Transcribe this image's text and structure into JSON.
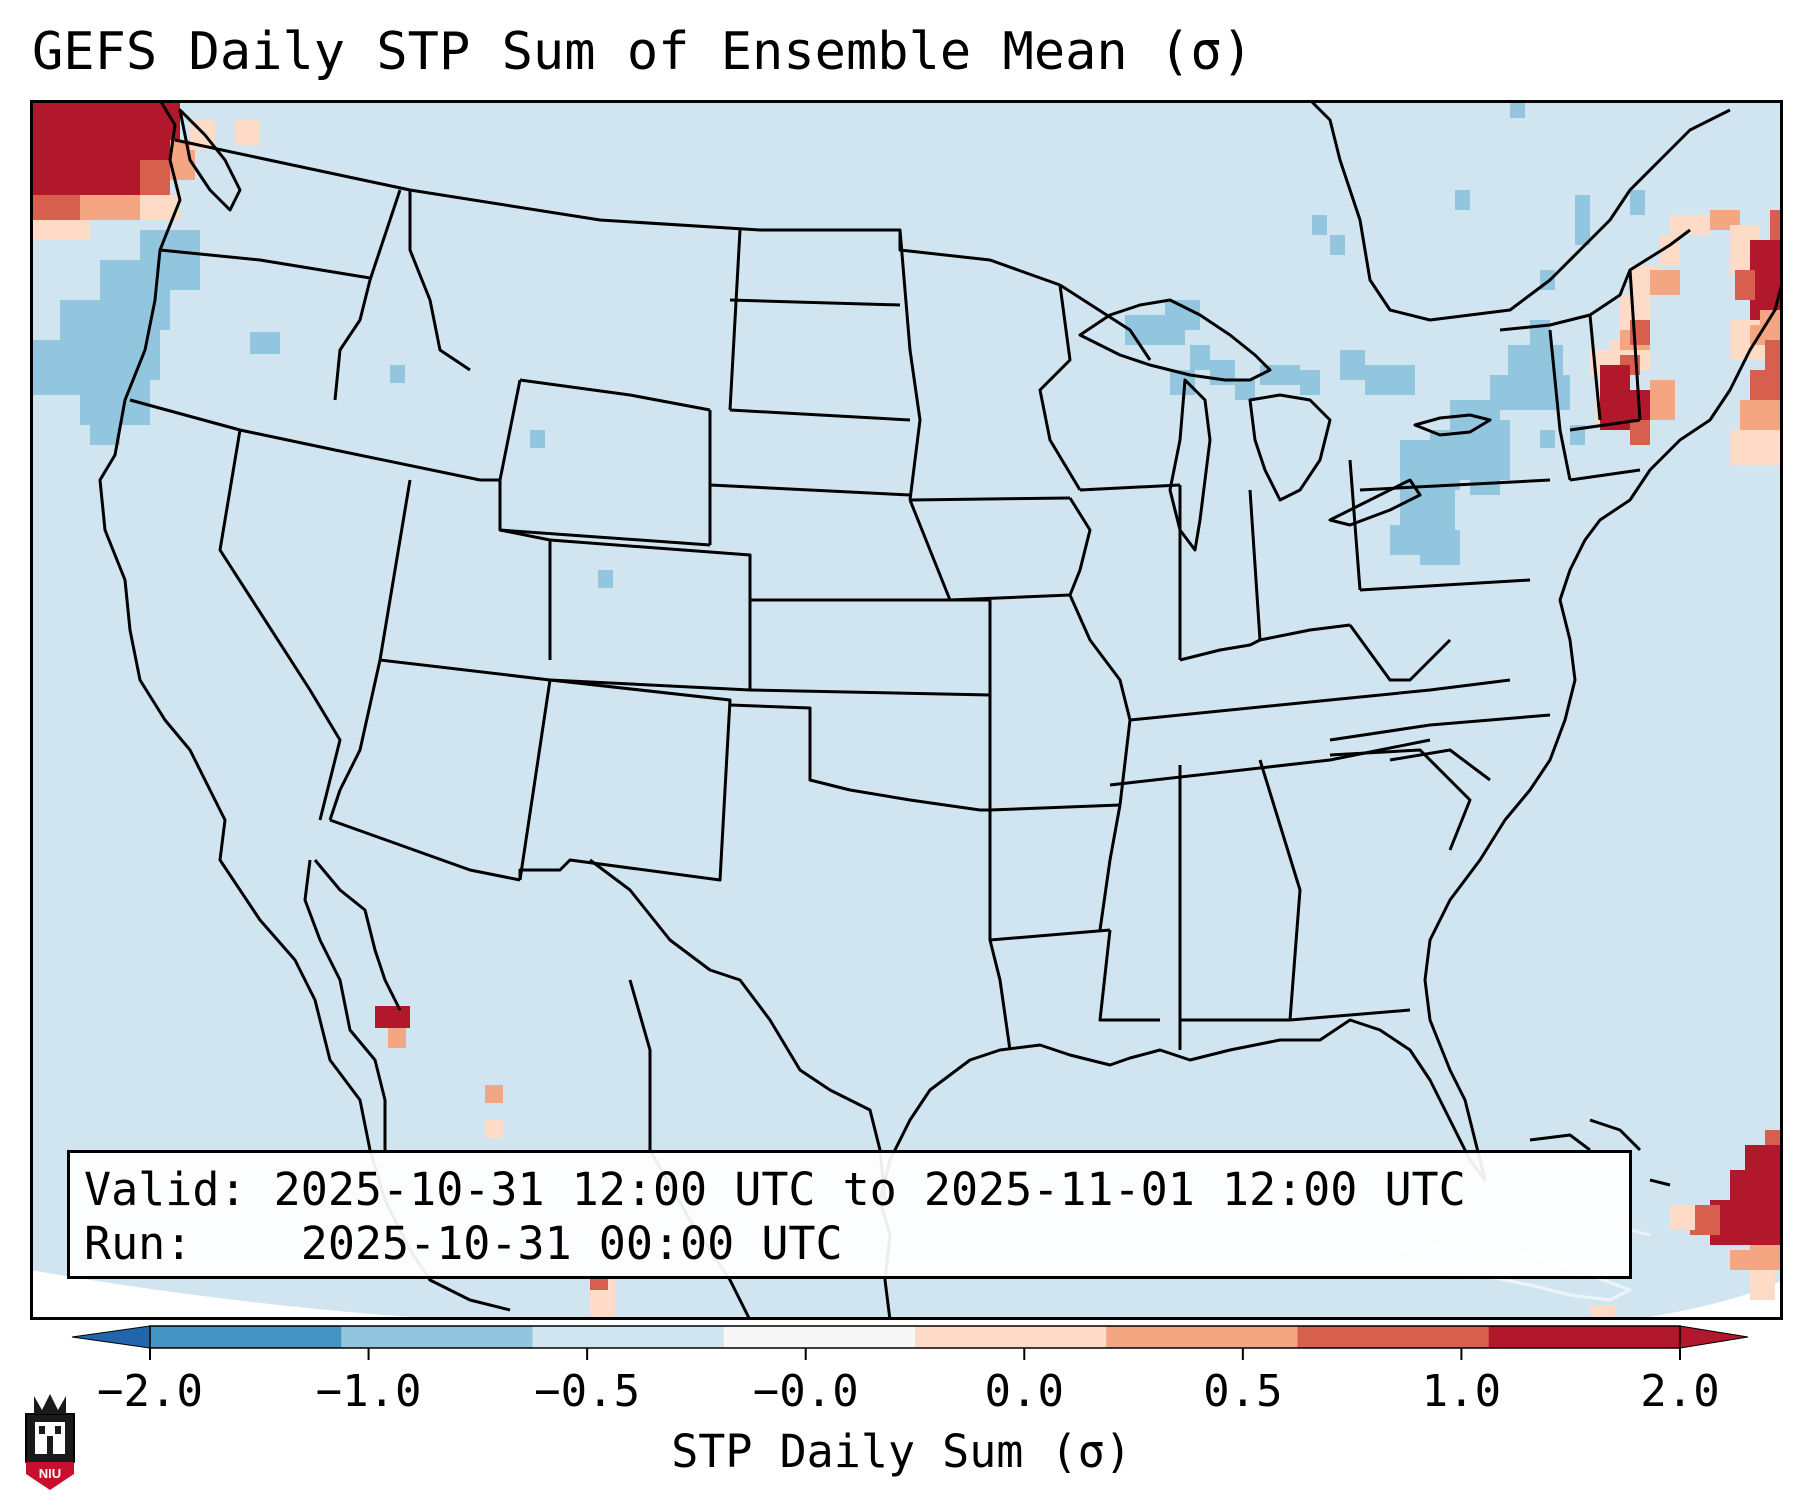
{
  "title": "GEFS Daily STP Sum of Ensemble Mean (σ)",
  "info": {
    "valid_label": "Valid:",
    "valid_value": "2025-10-31 12:00 UTC to 2025-11-01 12:00 UTC",
    "run_label": "Run:",
    "run_value": "2025-10-31 00:00 UTC"
  },
  "colorbar": {
    "label": "STP Daily Sum (σ)",
    "ticks": [
      "−2.0",
      "−1.0",
      "−0.5",
      "−0.0",
      "0.0",
      "0.5",
      "1.0",
      "2.0"
    ],
    "colors": [
      "#4393c3",
      "#92c5de",
      "#d1e5f0",
      "#f7f7f7",
      "#fddbc7",
      "#f4a582",
      "#d6604d",
      "#b2182b"
    ],
    "extend_low_color": "#2166ac",
    "extend_high_color": "#b2182b"
  },
  "map": {
    "background_color": "#d1e5f0",
    "region": "CONUS"
  },
  "logo": {
    "text": "NIU"
  }
}
